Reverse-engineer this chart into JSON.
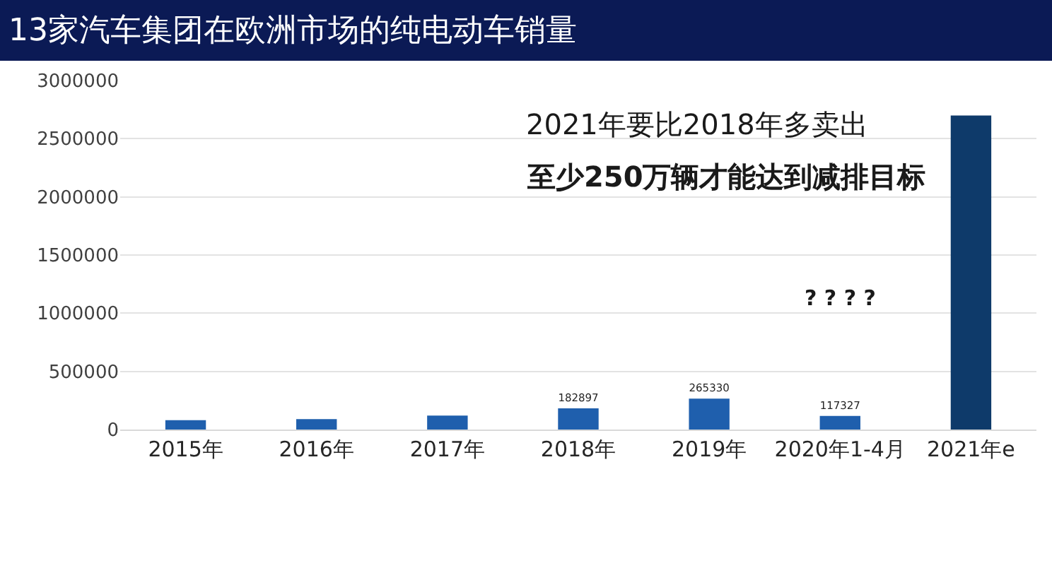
{
  "chart_data": {
    "type": "bar",
    "title": "13家汽车集团在欧洲市场的纯电动车销量",
    "categories": [
      "2015年",
      "2016年",
      "2017年",
      "2018年",
      "2019年",
      "2020年1-4月",
      "2021年e"
    ],
    "values": [
      80000,
      90000,
      120000,
      182897,
      265330,
      117327,
      2700000
    ],
    "colors": [
      "#1f5fad",
      "#1f5fad",
      "#1f5fad",
      "#1f5fad",
      "#1f5fad",
      "#1f5fad",
      "#0e3a6a"
    ],
    "value_labels": [
      null,
      null,
      null,
      "182897",
      "265330",
      "117327",
      null
    ],
    "ylim": [
      0,
      3000000
    ],
    "yticks": [
      0,
      500000,
      1000000,
      1500000,
      2000000,
      2500000,
      3000000
    ],
    "grid": "y",
    "annotations": [
      "2021年要比2018年多卖出",
      "至少250万辆才能达到减排目标",
      "? ? ? ?"
    ]
  }
}
